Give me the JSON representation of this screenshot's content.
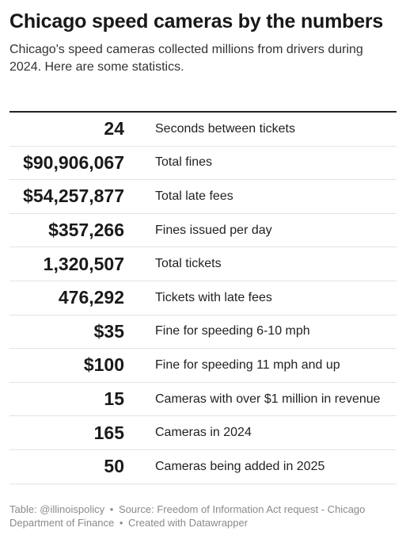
{
  "header": {
    "title": "Chicago speed cameras by the numbers",
    "subtitle": "Chicago's speed cameras collected millions from drivers during 2024. Here are some statistics."
  },
  "chart_data": {
    "type": "table",
    "title": "Chicago speed cameras by the numbers",
    "subtitle": "Chicago's speed cameras collected millions from drivers during 2024. Here are some statistics.",
    "rows": [
      {
        "value": "24",
        "label": "Seconds between tickets"
      },
      {
        "value": "$90,906,067",
        "label": "Total fines"
      },
      {
        "value": "$54,257,877",
        "label": "Total late fees"
      },
      {
        "value": "$357,266",
        "label": "Fines issued per day"
      },
      {
        "value": "1,320,507",
        "label": "Total tickets"
      },
      {
        "value": "476,292",
        "label": "Tickets with late fees"
      },
      {
        "value": "$35",
        "label": "Fine for speeding 6-10 mph"
      },
      {
        "value": "$100",
        "label": "Fine for speeding 11 mph and up"
      },
      {
        "value": "15",
        "label": "Cameras with over $1 million in revenue"
      },
      {
        "value": "165",
        "label": "Cameras in 2024"
      },
      {
        "value": "50",
        "label": "Cameras being added in 2025"
      }
    ]
  },
  "footer": {
    "table_credit": "Table: @illinoispolicy",
    "source": "Source: Freedom of Information Act request - Chicago Department of Finance",
    "created_with": "Created with Datawrapper",
    "separator": "•"
  }
}
